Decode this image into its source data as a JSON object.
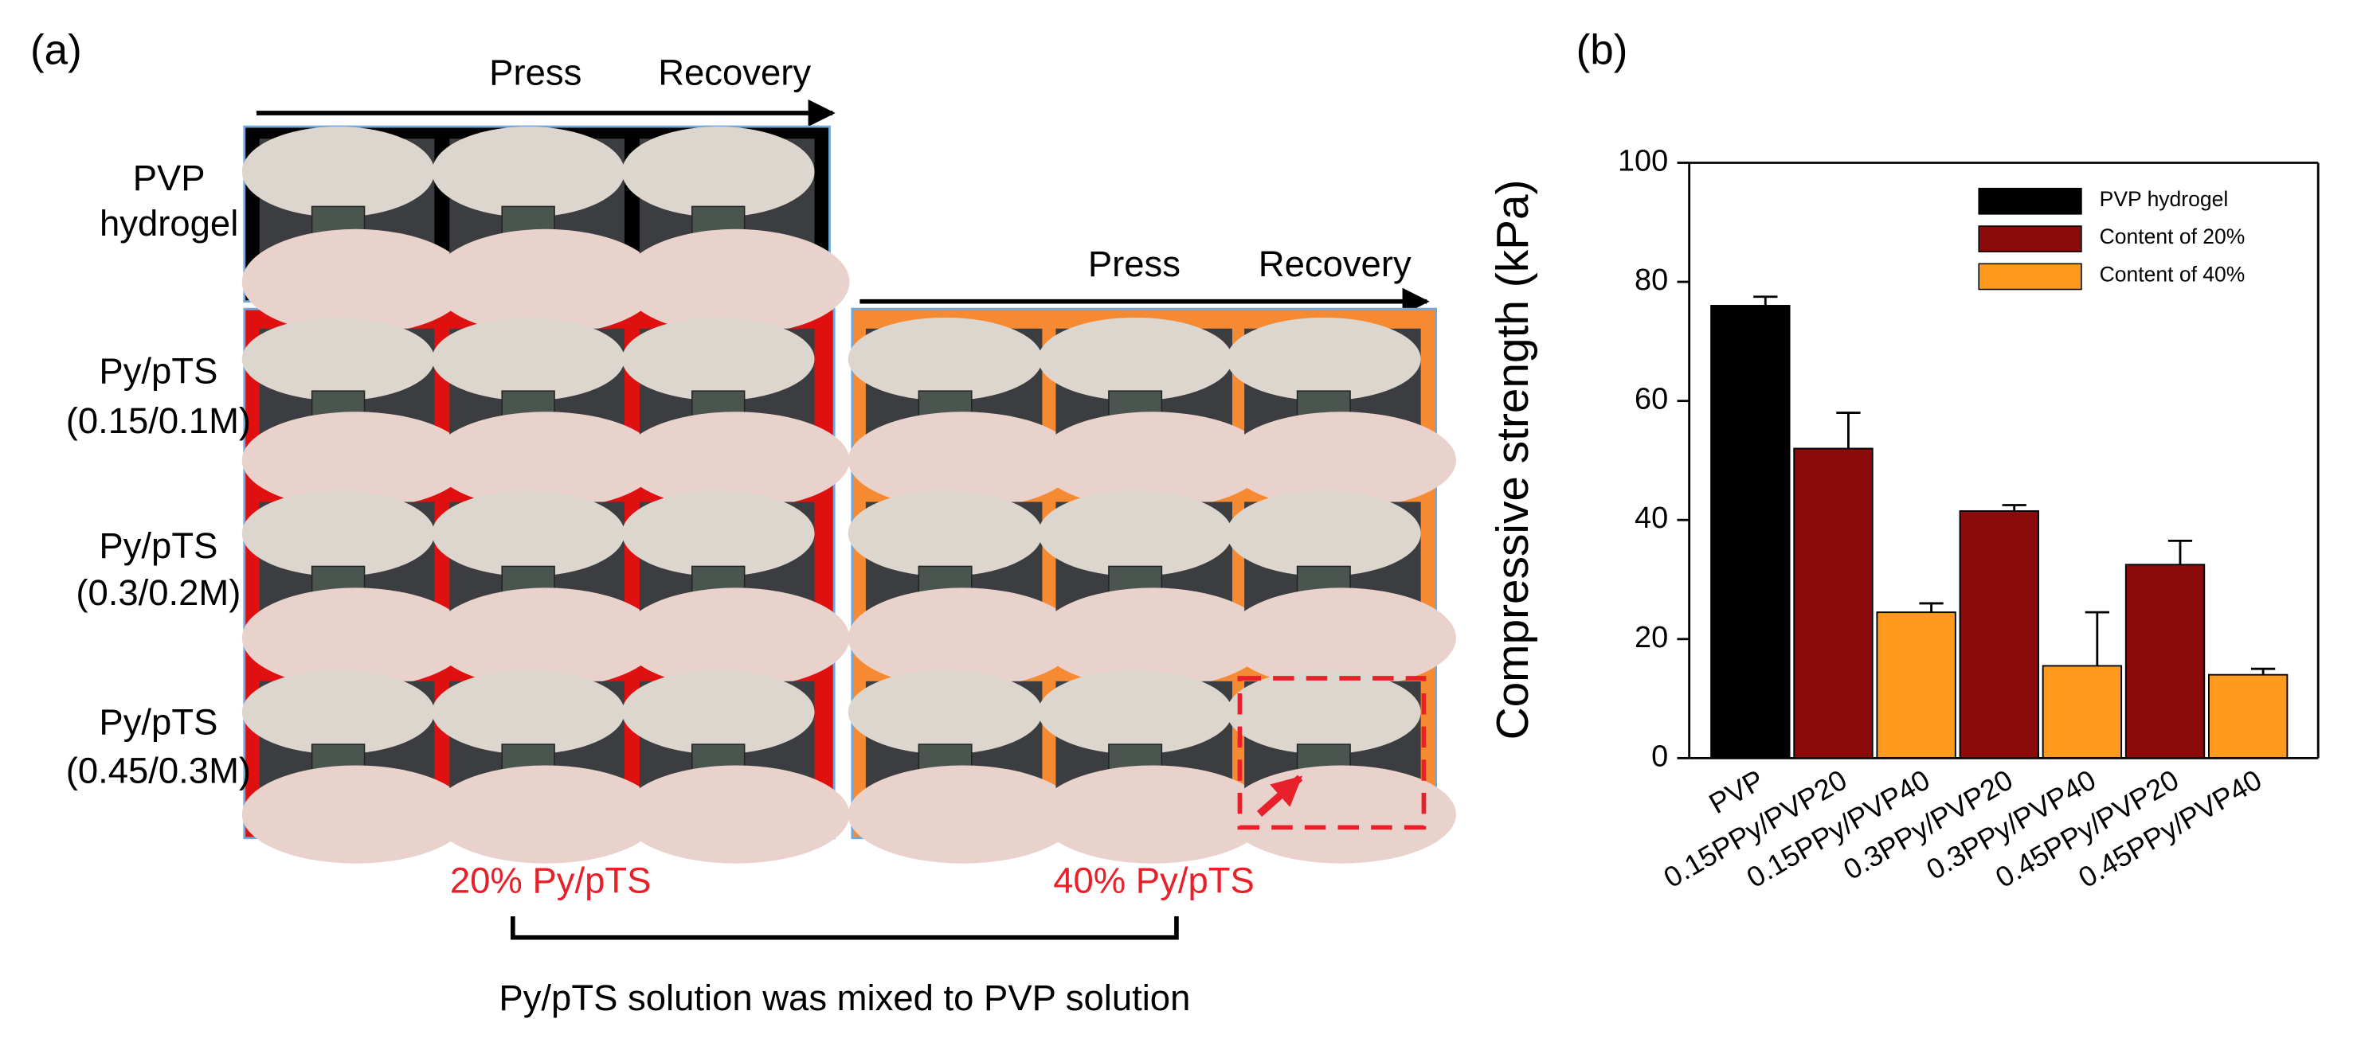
{
  "panel_a": {
    "label": "(a)",
    "press": "Press",
    "recovery": "Recovery",
    "pvp_row": [
      "PVP",
      "hydrogel"
    ],
    "rows": [
      [
        "Py/pTS",
        "(0.15/0.1M)"
      ],
      [
        "Py/pTS",
        "(0.3/0.2M)"
      ],
      [
        "Py/pTS",
        "(0.45/0.3M)"
      ]
    ],
    "group_20": "20% Py/pTS",
    "group_40": "40% Py/pTS",
    "caption": "Py/pTS solution was mixed to PVP solution"
  },
  "chart_data": {
    "type": "bar",
    "panel_label": "(b)",
    "ylabel": "Compressive strength (kPa)",
    "categories": [
      "PVP",
      "0.15PPy/PVP20",
      "0.15PPy/PVP40",
      "0.3PPy/PVP20",
      "0.3PPy/PVP40",
      "0.45PPy/PVP20",
      "0.45PPy/PVP40"
    ],
    "series": [
      {
        "name": "PVP hydrogel",
        "color": "#000000",
        "values": [
          76,
          null,
          null,
          null,
          null,
          null,
          null
        ],
        "errors": [
          1.5,
          null,
          null,
          null,
          null,
          null,
          null
        ]
      },
      {
        "name": "Content of 20%",
        "color": "#8b0a0a",
        "values": [
          null,
          52,
          null,
          41.5,
          null,
          32.5,
          null
        ],
        "errors": [
          null,
          6,
          null,
          1,
          null,
          4,
          null
        ]
      },
      {
        "name": "Content of 40%",
        "color": "#ff9a1e",
        "values": [
          null,
          null,
          24.5,
          null,
          15.5,
          null,
          14
        ],
        "errors": [
          null,
          null,
          1.5,
          null,
          9,
          null,
          1
        ]
      }
    ],
    "ylim": [
      0,
      100
    ],
    "yticks": [
      0,
      20,
      40,
      60,
      80,
      100
    ],
    "legend": "upper right"
  }
}
